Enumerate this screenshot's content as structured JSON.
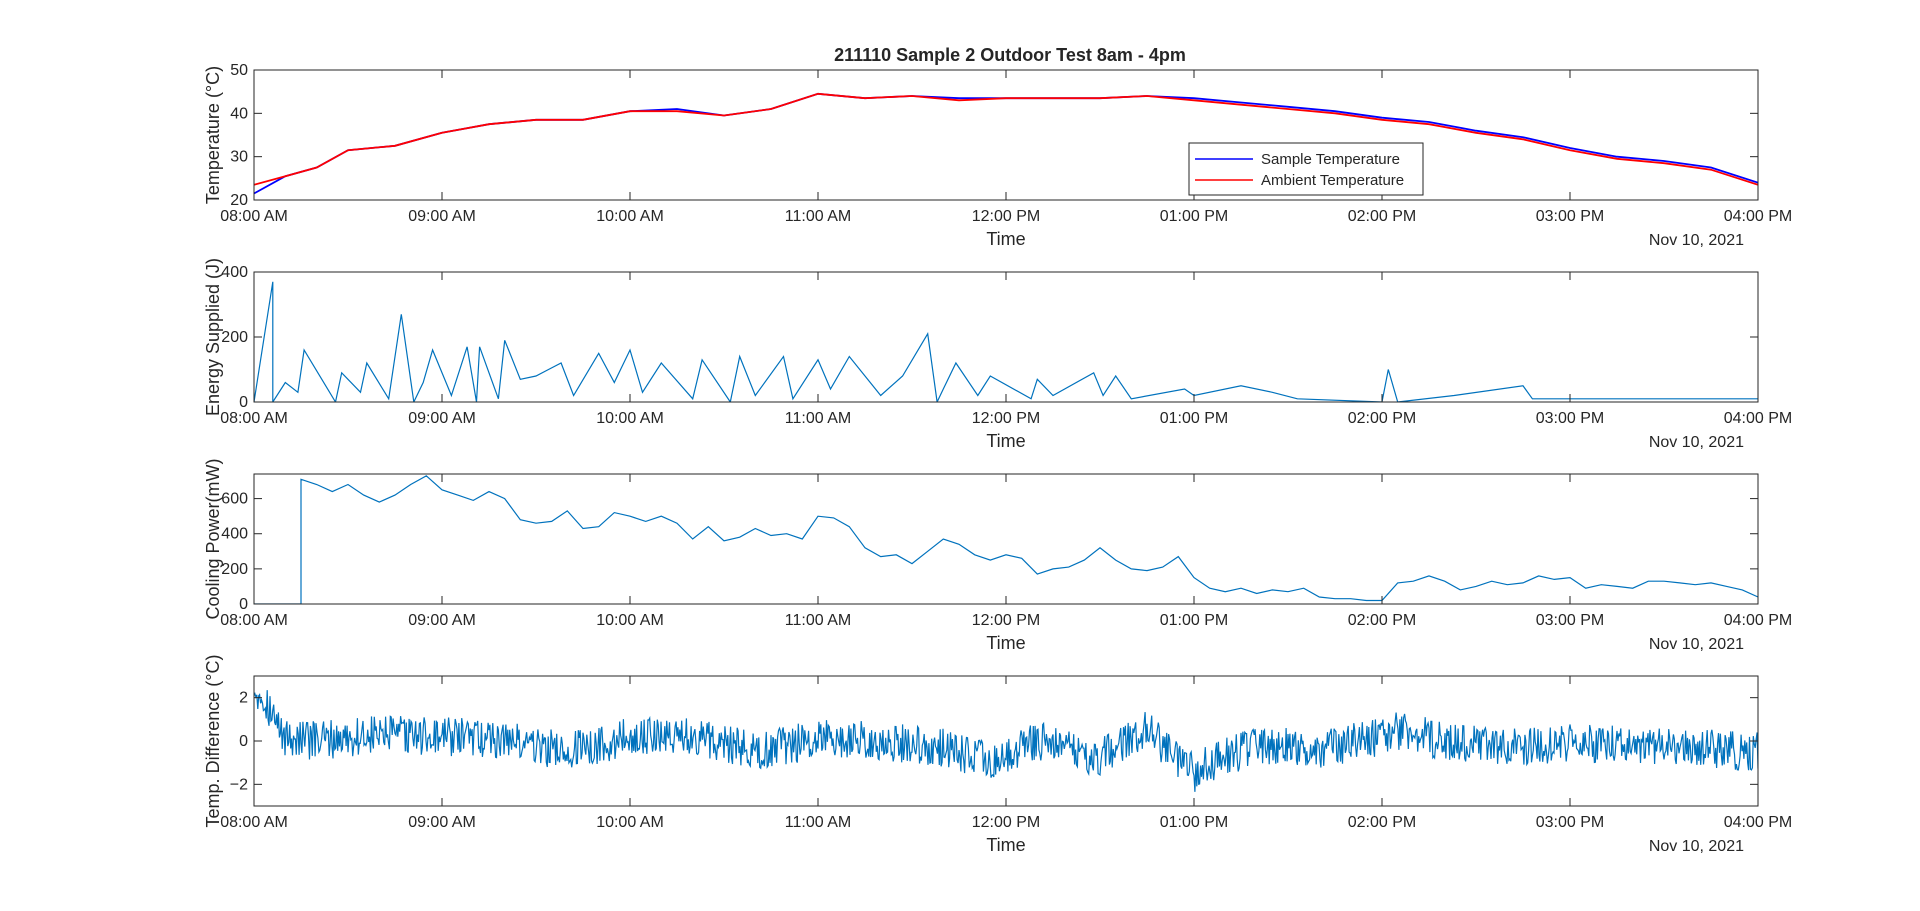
{
  "figure_title": "211110 Sample 2 Outdoor Test 8am - 4pm",
  "colors": {
    "axes": "#262626",
    "sample": "#0000ff",
    "ambient": "#ff0000",
    "series_default": "#0072bd"
  },
  "chart_data": [
    {
      "type": "line",
      "title": "211110 Sample 2 Outdoor Test 8am - 4pm",
      "xlabel": "Time",
      "ylabel": "Temperature (°C)",
      "date_label": "Nov 10, 2021",
      "xlim": [
        "08:00",
        "16:00"
      ],
      "x_tick_labels": [
        "08:00 AM",
        "09:00 AM",
        "10:00 AM",
        "11:00 AM",
        "12:00 PM",
        "01:00 PM",
        "02:00 PM",
        "03:00 PM",
        "04:00 PM"
      ],
      "ylim": [
        20,
        50
      ],
      "y_ticks": [
        20,
        30,
        40,
        50
      ],
      "grid": false,
      "legend_position": "lower-right",
      "series": [
        {
          "name": "Sample Temperature",
          "color": "#0000ff",
          "x": [
            "08:00",
            "08:10",
            "08:20",
            "08:30",
            "08:45",
            "09:00",
            "09:15",
            "09:30",
            "09:45",
            "10:00",
            "10:15",
            "10:30",
            "10:45",
            "11:00",
            "11:15",
            "11:30",
            "11:45",
            "12:00",
            "12:15",
            "12:30",
            "12:45",
            "13:00",
            "13:15",
            "13:30",
            "13:45",
            "14:00",
            "14:15",
            "14:30",
            "14:45",
            "15:00",
            "15:15",
            "15:30",
            "15:45",
            "16:00"
          ],
          "values": [
            21.5,
            25.5,
            27.5,
            31.5,
            32.5,
            35.5,
            37.5,
            38.5,
            38.5,
            40.5,
            41,
            39.5,
            41,
            44.5,
            43.5,
            44,
            43.5,
            43.5,
            43.5,
            43.5,
            44,
            43.5,
            42.5,
            41.5,
            40.5,
            39,
            38,
            36,
            34.5,
            32,
            30,
            29,
            27.5,
            24
          ]
        },
        {
          "name": "Ambient Temperature",
          "color": "#ff0000",
          "x": [
            "08:00",
            "08:10",
            "08:20",
            "08:30",
            "08:45",
            "09:00",
            "09:15",
            "09:30",
            "09:45",
            "10:00",
            "10:15",
            "10:30",
            "10:45",
            "11:00",
            "11:15",
            "11:30",
            "11:45",
            "12:00",
            "12:15",
            "12:30",
            "12:45",
            "13:00",
            "13:15",
            "13:30",
            "13:45",
            "14:00",
            "14:15",
            "14:30",
            "14:45",
            "15:00",
            "15:15",
            "15:30",
            "15:45",
            "16:00"
          ],
          "values": [
            23.5,
            25.5,
            27.5,
            31.5,
            32.5,
            35.5,
            37.5,
            38.5,
            38.5,
            40.5,
            40.5,
            39.5,
            41,
            44.5,
            43.5,
            44,
            43,
            43.5,
            43.5,
            43.5,
            44,
            43,
            42,
            41,
            40,
            38.5,
            37.5,
            35.5,
            34,
            31.5,
            29.5,
            28.5,
            27,
            23.5
          ]
        }
      ]
    },
    {
      "type": "line",
      "xlabel": "Time",
      "ylabel": "Energy Supplied (J)",
      "date_label": "Nov 10, 2021",
      "xlim": [
        "08:00",
        "16:00"
      ],
      "x_tick_labels": [
        "08:00 AM",
        "09:00 AM",
        "10:00 AM",
        "11:00 AM",
        "12:00 PM",
        "01:00 PM",
        "02:00 PM",
        "03:00 PM",
        "04:00 PM"
      ],
      "ylim": [
        0,
        400
      ],
      "y_ticks": [
        0,
        200,
        400
      ],
      "grid": false,
      "series": [
        {
          "color": "#0072bd",
          "x": [
            "08:00",
            "08:06",
            "08:06",
            "08:10",
            "08:14",
            "08:16",
            "08:26",
            "08:28",
            "08:34",
            "08:36",
            "08:43",
            "08:47",
            "08:51",
            "08:54",
            "08:57",
            "09:03",
            "09:08",
            "09:11",
            "09:12",
            "09:18",
            "09:20",
            "09:25",
            "09:30",
            "09:34",
            "09:38",
            "09:42",
            "09:50",
            "09:55",
            "10:00",
            "10:04",
            "10:10",
            "10:20",
            "10:23",
            "10:32",
            "10:35",
            "10:40",
            "10:49",
            "10:52",
            "11:00",
            "11:04",
            "11:10",
            "11:20",
            "11:27",
            "11:35",
            "11:38",
            "11:40",
            "11:44",
            "11:51",
            "11:55",
            "12:08",
            "12:10",
            "12:15",
            "12:28",
            "12:31",
            "12:35",
            "12:40",
            "12:57",
            "13:00",
            "13:15",
            "13:25",
            "13:33",
            "14:00",
            "14:02",
            "14:05",
            "14:23",
            "14:45",
            "14:48",
            "15:00",
            "16:00"
          ],
          "values": [
            0,
            370,
            0,
            60,
            30,
            160,
            0,
            90,
            30,
            120,
            10,
            270,
            0,
            60,
            160,
            20,
            170,
            0,
            170,
            10,
            190,
            70,
            80,
            100,
            120,
            20,
            150,
            60,
            160,
            30,
            120,
            10,
            130,
            0,
            140,
            20,
            140,
            10,
            130,
            40,
            140,
            20,
            80,
            210,
            0,
            40,
            120,
            20,
            80,
            10,
            70,
            20,
            90,
            20,
            80,
            10,
            40,
            20,
            50,
            30,
            10,
            0,
            100,
            0,
            20,
            50,
            10,
            10,
            10
          ]
        }
      ]
    },
    {
      "type": "line",
      "xlabel": "Time",
      "ylabel": "Cooling Power(mW)",
      "date_label": "Nov 10, 2021",
      "xlim": [
        "08:00",
        "16:00"
      ],
      "x_tick_labels": [
        "08:00 AM",
        "09:00 AM",
        "10:00 AM",
        "11:00 AM",
        "12:00 PM",
        "01:00 PM",
        "02:00 PM",
        "03:00 PM",
        "04:00 PM"
      ],
      "ylim": [
        0,
        740
      ],
      "y_ticks": [
        0,
        200,
        400,
        600
      ],
      "grid": false,
      "series": [
        {
          "color": "#0072bd",
          "x": [
            "08:00",
            "08:14",
            "08:15",
            "08:15",
            "08:20",
            "08:25",
            "08:30",
            "08:35",
            "08:40",
            "08:45",
            "08:50",
            "08:55",
            "09:00",
            "09:05",
            "09:10",
            "09:15",
            "09:20",
            "09:25",
            "09:30",
            "09:35",
            "09:40",
            "09:45",
            "09:50",
            "09:55",
            "10:00",
            "10:05",
            "10:10",
            "10:15",
            "10:20",
            "10:25",
            "10:30",
            "10:35",
            "10:40",
            "10:45",
            "10:50",
            "10:55",
            "11:00",
            "11:05",
            "11:10",
            "11:15",
            "11:20",
            "11:25",
            "11:30",
            "11:35",
            "11:40",
            "11:45",
            "11:50",
            "11:55",
            "12:00",
            "12:05",
            "12:10",
            "12:15",
            "12:20",
            "12:25",
            "12:30",
            "12:35",
            "12:40",
            "12:45",
            "12:50",
            "12:55",
            "13:00",
            "13:05",
            "13:10",
            "13:15",
            "13:20",
            "13:25",
            "13:30",
            "13:35",
            "13:40",
            "13:45",
            "13:50",
            "13:55",
            "14:00",
            "14:05",
            "14:10",
            "14:15",
            "14:20",
            "14:25",
            "14:30",
            "14:35",
            "14:40",
            "14:45",
            "14:50",
            "14:55",
            "15:00",
            "15:05",
            "15:10",
            "15:15",
            "15:20",
            "15:25",
            "15:30",
            "15:35",
            "15:40",
            "15:45",
            "15:50",
            "15:55",
            "16:00"
          ],
          "values": [
            0,
            0,
            0,
            710,
            680,
            640,
            680,
            620,
            580,
            620,
            680,
            730,
            650,
            620,
            590,
            640,
            600,
            480,
            460,
            470,
            530,
            430,
            440,
            520,
            500,
            470,
            500,
            460,
            370,
            440,
            360,
            380,
            430,
            390,
            400,
            370,
            500,
            490,
            440,
            320,
            270,
            280,
            230,
            300,
            370,
            340,
            280,
            250,
            280,
            260,
            170,
            200,
            210,
            250,
            320,
            250,
            200,
            190,
            210,
            270,
            150,
            90,
            70,
            90,
            60,
            80,
            70,
            90,
            40,
            30,
            30,
            20,
            20,
            120,
            130,
            160,
            130,
            80,
            100,
            130,
            110,
            120,
            160,
            140,
            150,
            90,
            110,
            100,
            90,
            130,
            130,
            120,
            110,
            120,
            100,
            80,
            40
          ]
        }
      ]
    },
    {
      "type": "line",
      "xlabel": "Time",
      "ylabel": "Temp. Difference (°C)",
      "date_label": "Nov 10, 2021",
      "xlim": [
        "08:00",
        "16:00"
      ],
      "x_tick_labels": [
        "08:00 AM",
        "09:00 AM",
        "10:00 AM",
        "11:00 AM",
        "12:00 PM",
        "01:00 PM",
        "02:00 PM",
        "03:00 PM",
        "04:00 PM"
      ],
      "ylim": [
        -3,
        3
      ],
      "y_ticks": [
        -2,
        0,
        2
      ],
      "grid": false,
      "series": [
        {
          "color": "#0072bd",
          "x": [
            "08:00",
            "08:02",
            "08:04",
            "08:06",
            "08:08",
            "08:10",
            "08:20",
            "08:40",
            "09:00",
            "09:20",
            "09:40",
            "10:00",
            "10:20",
            "10:40",
            "11:00",
            "11:20",
            "11:40",
            "11:55",
            "12:10",
            "12:30",
            "12:45",
            "13:00",
            "13:05",
            "13:20",
            "13:40",
            "14:00",
            "14:05",
            "14:20",
            "14:40",
            "15:00",
            "15:20",
            "15:40",
            "16:00"
          ],
          "values": [
            2.5,
            2.2,
            1.8,
            1.2,
            0.5,
            0.2,
            0,
            0.3,
            0.2,
            0.1,
            -0.5,
            0.2,
            0.3,
            -0.5,
            0.1,
            0,
            -0.3,
            -1,
            0,
            -0.8,
            0.5,
            -1.5,
            -1,
            -0.2,
            -0.4,
            0.2,
            0.5,
            0,
            -0.3,
            -0.1,
            -0.2,
            -0.3,
            -0.5
          ],
          "noise_band": 0.9
        }
      ]
    }
  ]
}
